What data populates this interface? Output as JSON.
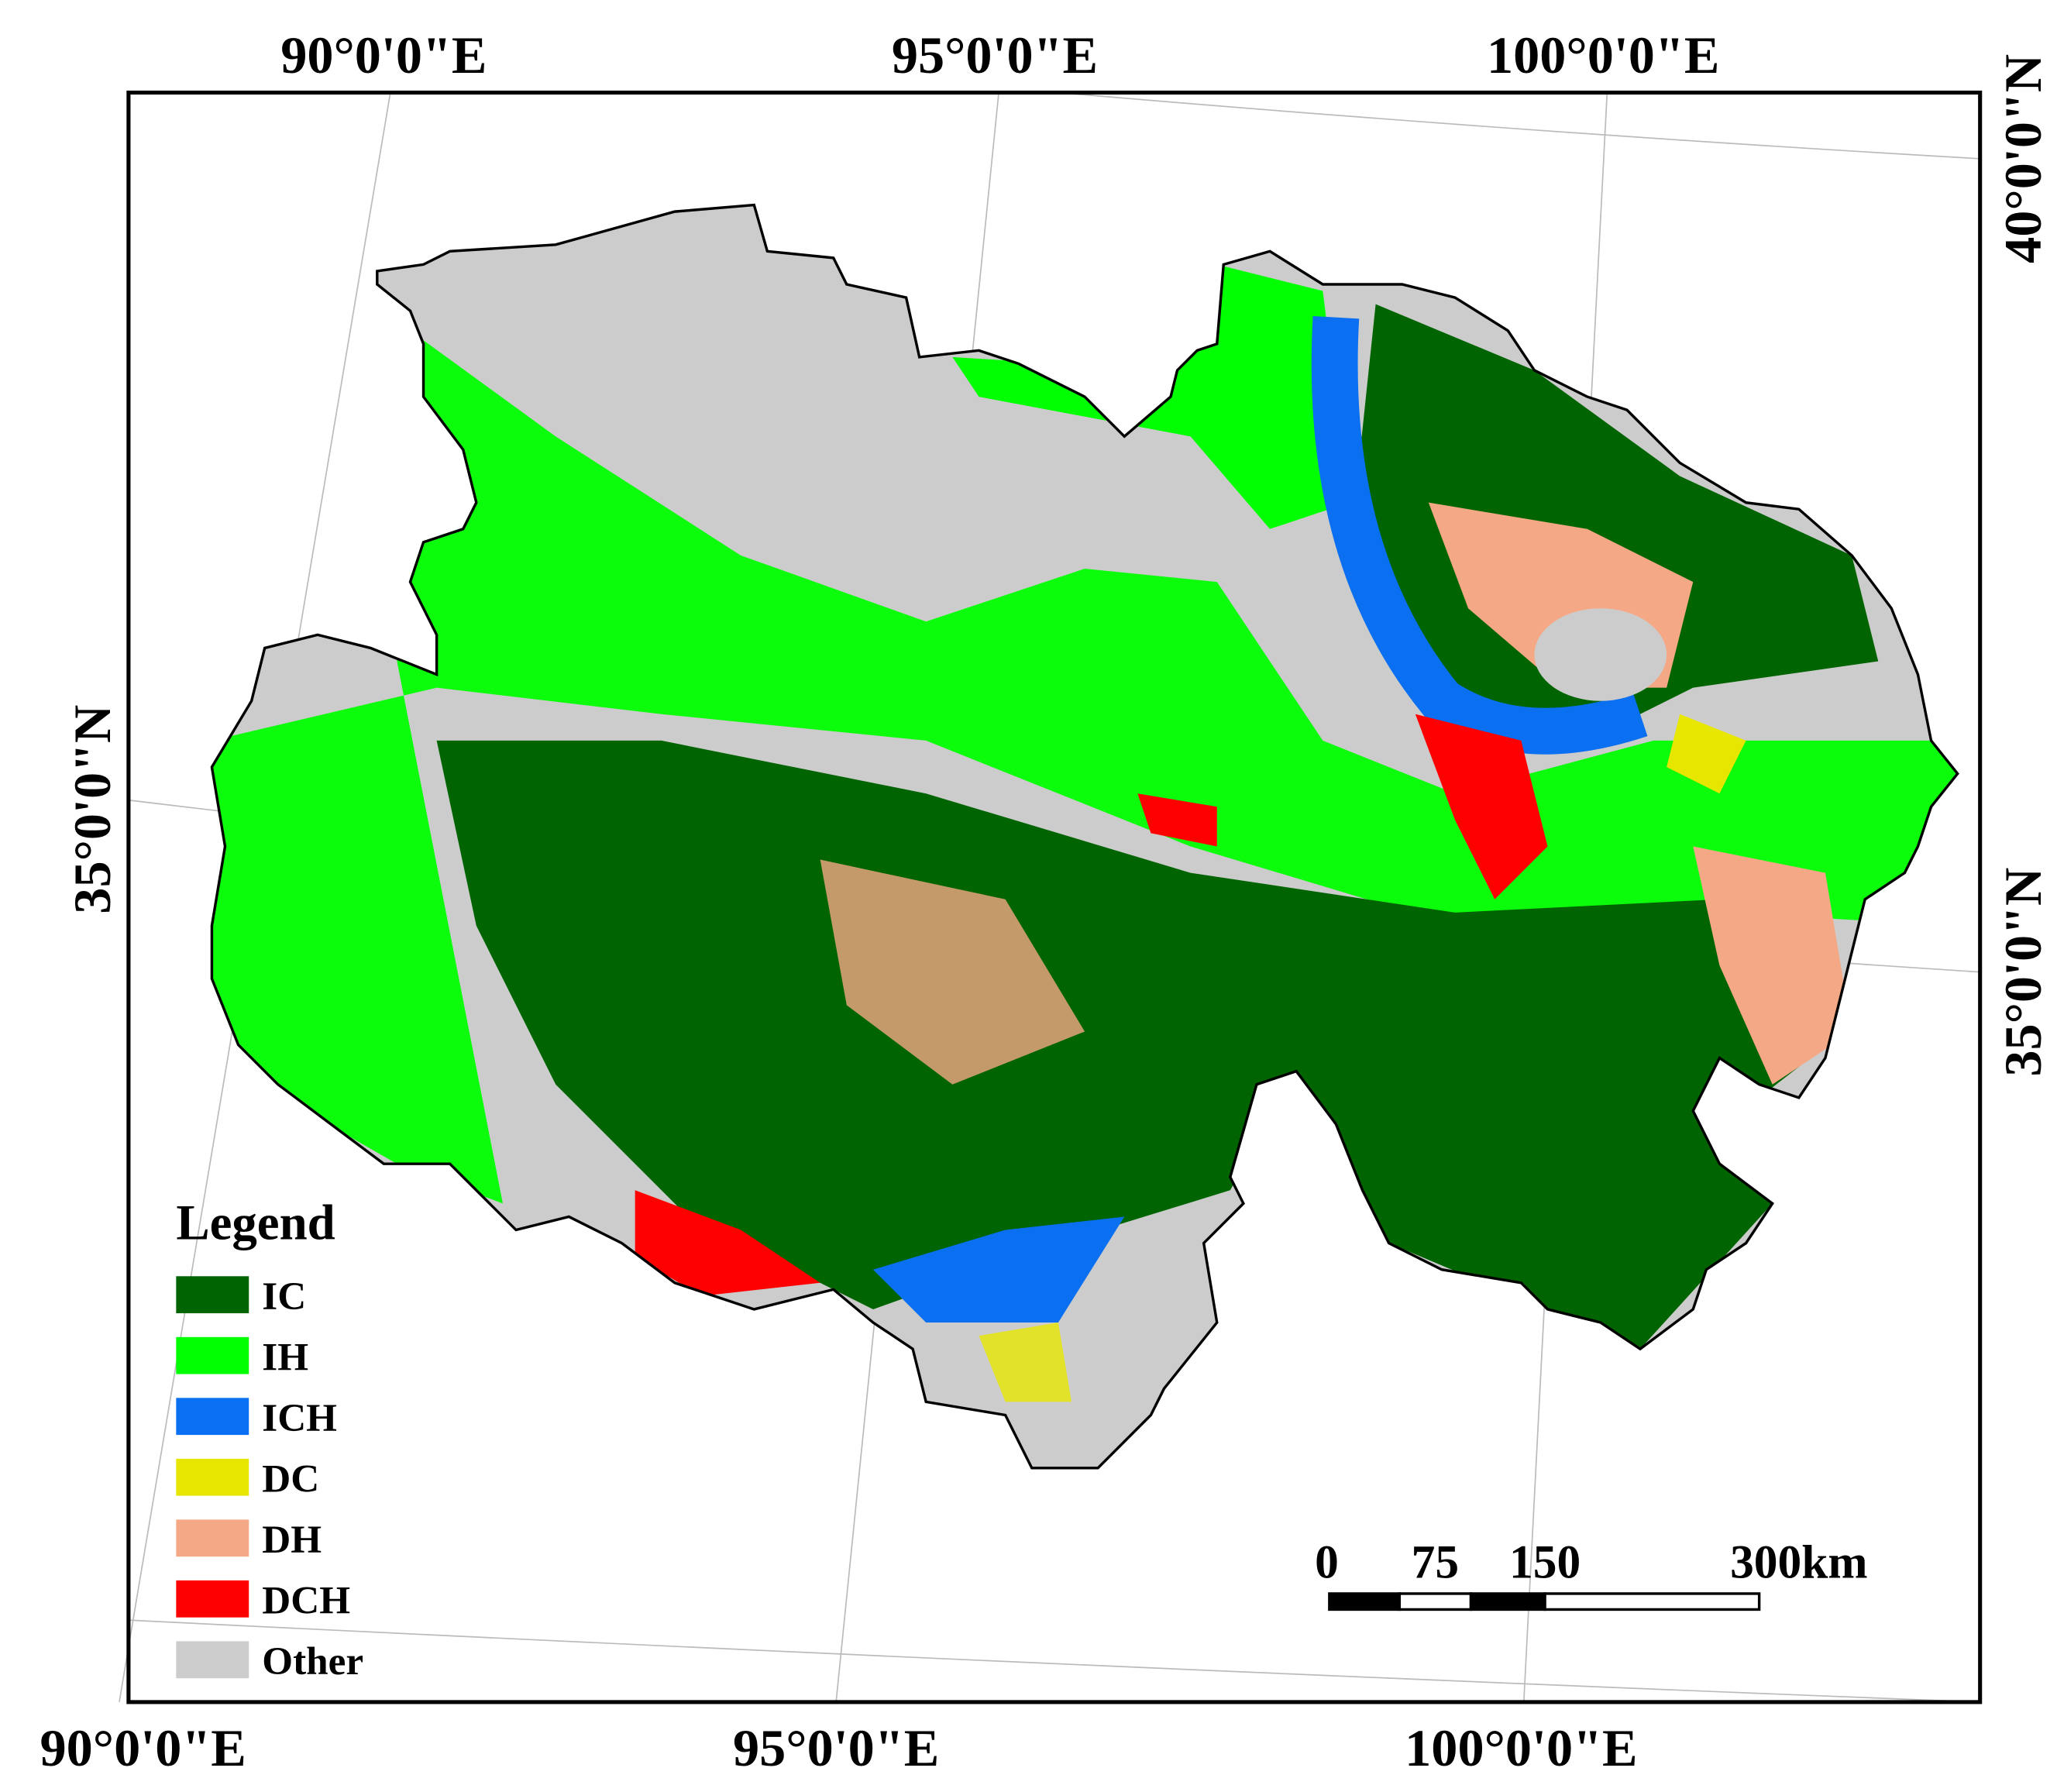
{
  "map": {
    "top_labels": [
      "90°0'0\"E",
      "95°0'0\"E",
      "100°0'0\"E"
    ],
    "bottom_labels": [
      "90°0'0\"E",
      "95°0'0\"E",
      "100°0'0\"E"
    ],
    "left_labels": [
      "35°0'0\"N"
    ],
    "right_labels": [
      "40°0'0\"N",
      "35°0'0\"N"
    ],
    "legend": {
      "title": "Legend",
      "items": [
        {
          "label": "IC",
          "color": "#006400"
        },
        {
          "label": "IH",
          "color": "#00ff00"
        },
        {
          "label": "ICH",
          "color": "#0a6ff0"
        },
        {
          "label": "DC",
          "color": "#e6e600"
        },
        {
          "label": "DH",
          "color": "#f5a886"
        },
        {
          "label": "DCH",
          "color": "#ff0000"
        },
        {
          "label": "Other",
          "color": "#cccccc"
        }
      ]
    },
    "scale_bar": {
      "labels": [
        "0",
        "75",
        "150",
        "300km"
      ]
    }
  }
}
